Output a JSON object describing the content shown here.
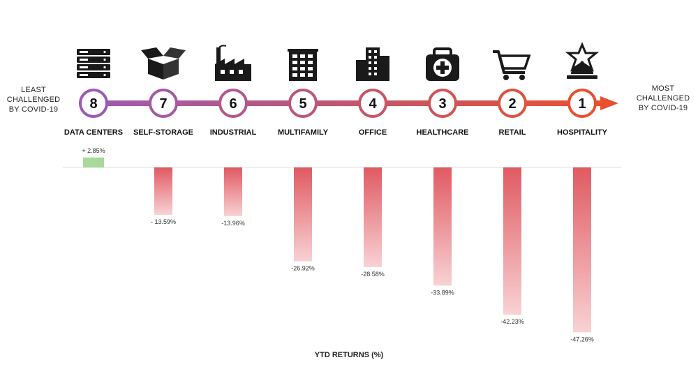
{
  "left_label": [
    "LEAST",
    "CHALLENGED",
    "BY COVID-19"
  ],
  "right_label": [
    "MOST",
    "CHALLENGED",
    "BY COVID-19"
  ],
  "axis_title": "YTD RETURNS (%)",
  "colors": {
    "arrow_start": "#9b5bb5",
    "arrow_end": "#e8502e",
    "bar_negative_top": "#e05a62",
    "bar_negative_bottom": "#f8d2d4",
    "bar_positive": "#a8d89a",
    "baseline": "#dddddd"
  },
  "chart_data": {
    "type": "bar",
    "categories": [
      "DATA CENTERS",
      "SELF-STORAGE",
      "INDUSTRIAL",
      "MULTIFAMILY",
      "OFFICE",
      "HEALTHCARE",
      "RETAIL",
      "HOSPITALITY"
    ],
    "ranks": [
      "8",
      "7",
      "6",
      "5",
      "4",
      "3",
      "2",
      "1"
    ],
    "icons": [
      "server-rack-icon",
      "open-box-icon",
      "factory-icon",
      "apartment-building-icon",
      "office-tower-icon",
      "medical-kit-icon",
      "shopping-cart-icon",
      "service-bell-icon"
    ],
    "values": [
      2.85,
      -13.59,
      -13.96,
      -26.92,
      -28.58,
      -33.89,
      -42.23,
      -47.26
    ],
    "value_labels": [
      "+ 2.85%",
      "- 13.59%",
      "-13.96%",
      "-26.92%",
      "-28.58%",
      "-33.89%",
      "-42.23%",
      "-47.26%"
    ],
    "ylabel": "YTD RETURNS (%)",
    "ylim": [
      -50,
      5
    ],
    "grid": false,
    "legend": "none"
  }
}
